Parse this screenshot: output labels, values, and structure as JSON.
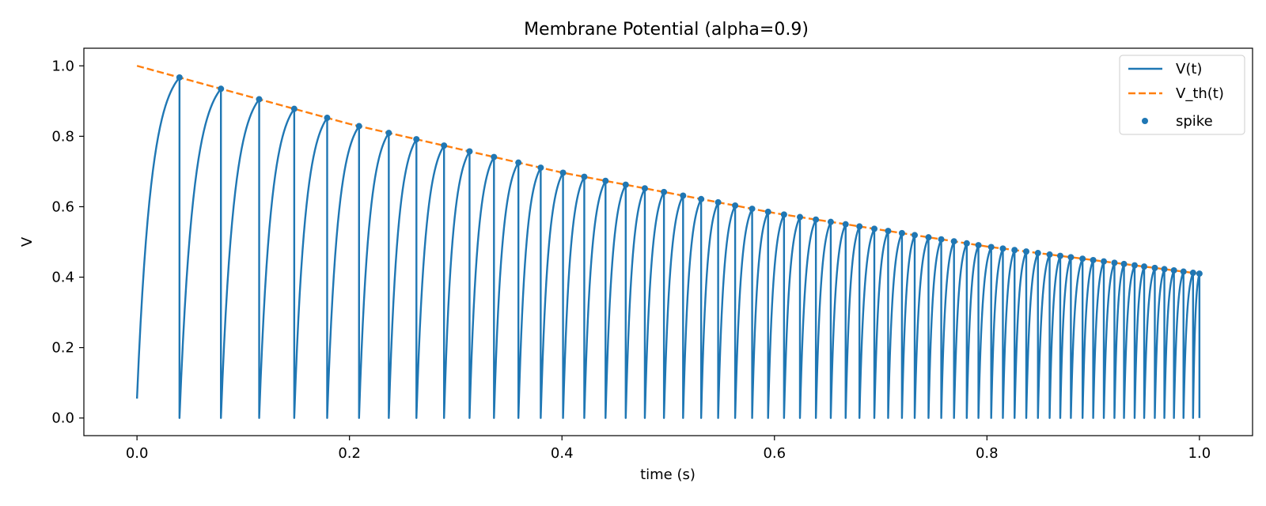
{
  "chart_data": {
    "type": "line",
    "title": "Membrane Potential (alpha=0.9)",
    "xlabel": "time (s)",
    "ylabel": "V",
    "xlim": [
      -0.05,
      1.05
    ],
    "ylim": [
      -0.05,
      1.05
    ],
    "xticks": [
      0.0,
      0.2,
      0.4,
      0.6,
      0.8,
      1.0
    ],
    "xtick_labels": [
      "0.0",
      "0.2",
      "0.4",
      "0.6",
      "0.8",
      "1.0"
    ],
    "yticks": [
      0.0,
      0.2,
      0.4,
      0.6,
      0.8,
      1.0
    ],
    "ytick_labels": [
      "0.0",
      "0.2",
      "0.4",
      "0.6",
      "0.8",
      "1.0"
    ],
    "grid": false,
    "legend_position": "top-right",
    "series": [
      {
        "name": "V(t)",
        "style": "solid",
        "color": "#1f77b4",
        "start": {
          "t": 0.0,
          "v": 0.055
        },
        "end": {
          "t": 1.0,
          "v": 0.0
        }
      },
      {
        "name": "V_th(t)",
        "style": "dashed",
        "color": "#ff7f0e",
        "points": [
          [
            0.0,
            1.0
          ],
          [
            0.2,
            0.835
          ],
          [
            0.4,
            0.697
          ],
          [
            0.6,
            0.582
          ],
          [
            0.8,
            0.487
          ],
          [
            1.0,
            0.41
          ]
        ]
      },
      {
        "name": "spike",
        "style": "scatter",
        "color": "#1f77b4",
        "t": [
          0.04,
          0.079,
          0.115,
          0.148,
          0.179,
          0.209,
          0.237,
          0.263,
          0.289,
          0.313,
          0.336,
          0.359,
          0.38,
          0.401,
          0.421,
          0.441,
          0.46,
          0.478,
          0.496,
          0.514,
          0.531,
          0.547,
          0.563,
          0.579,
          0.594,
          0.609,
          0.624,
          0.639,
          0.653,
          0.667,
          0.68,
          0.694,
          0.707,
          0.72,
          0.732,
          0.745,
          0.757,
          0.769,
          0.781,
          0.792,
          0.804,
          0.815,
          0.826,
          0.837,
          0.848,
          0.859,
          0.869,
          0.879,
          0.89,
          0.9,
          0.91,
          0.92,
          0.929,
          0.939,
          0.948,
          0.958,
          0.967,
          0.976,
          0.985,
          0.994,
          1.0
        ]
      }
    ]
  }
}
